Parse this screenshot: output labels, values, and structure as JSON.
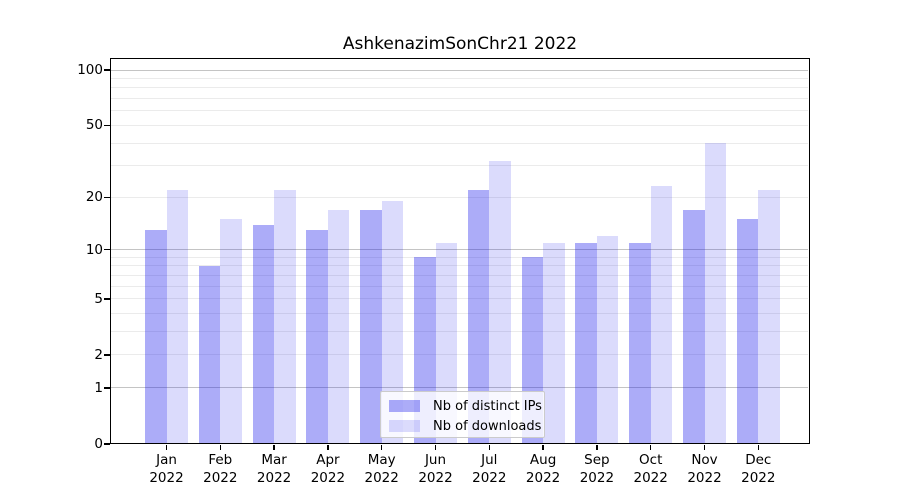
{
  "chart_data": {
    "type": "bar",
    "title": "AshkenazimSonChr21 2022",
    "x": {
      "categories": [
        "Jan",
        "Feb",
        "Mar",
        "Apr",
        "May",
        "Jun",
        "Jul",
        "Aug",
        "Sep",
        "Oct",
        "Nov",
        "Dec"
      ],
      "year": "2022"
    },
    "series": [
      {
        "name": "Nb of distinct IPs",
        "color": "rgba(25,25,235,0.36)",
        "values": [
          13,
          8,
          14,
          13,
          17,
          9,
          22,
          9,
          11,
          11,
          17,
          15
        ]
      },
      {
        "name": "Nb of downloads",
        "color": "rgba(25,25,235,0.155)",
        "values": [
          22,
          15,
          22,
          17,
          19,
          11,
          32,
          11,
          12,
          23,
          40,
          22
        ]
      }
    ],
    "y_axis": {
      "scale": "log1p",
      "ticks": [
        0,
        1,
        2,
        5,
        10,
        20,
        50,
        100
      ],
      "major_gridlines": [
        1,
        10,
        100
      ],
      "minor_gridlines": [
        2,
        3,
        4,
        5,
        6,
        7,
        8,
        9,
        20,
        30,
        40,
        50,
        60,
        70,
        80,
        90
      ],
      "top_value": 100
    },
    "legend": {
      "position": "lower-center"
    },
    "grid": true
  },
  "colors": {
    "background": "#ffffff",
    "axis": "#000000",
    "major_grid": "#c4c4c4",
    "minor_grid": "#ebebeb",
    "legend_border": "#cbcbcb",
    "legend_bg": "rgba(255,255,255,0.8)",
    "text": "#000000"
  }
}
